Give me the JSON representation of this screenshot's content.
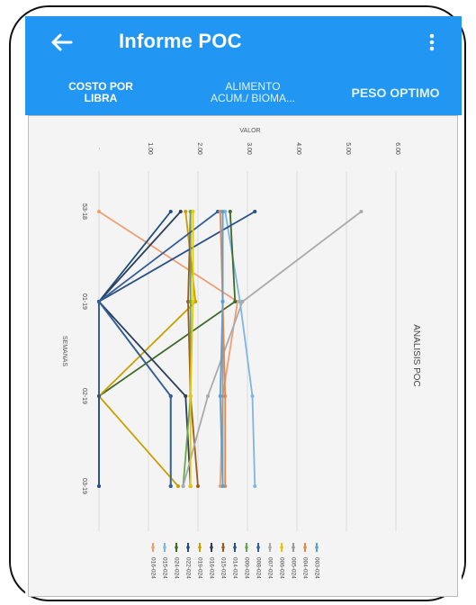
{
  "appbar": {
    "title": "Informe POC",
    "back_icon": "arrow-left-icon",
    "menu_icon": "more-vertical-icon"
  },
  "tabs": [
    {
      "label_line1": "COSTO POR",
      "label_line2": "LIBRA",
      "active": true
    },
    {
      "label_line1": "ALIMENTO",
      "label_line2": "ACUM./ BIOMA...",
      "active": false
    },
    {
      "label_line1": "PESO OPTIMO",
      "label_line2": "",
      "active": false
    }
  ],
  "colors": {
    "primary": "#2196F3",
    "on_primary": "#ffffff"
  },
  "chart_data": {
    "type": "line",
    "orientation": "rotated-90",
    "title": "ANALISIS POC",
    "ylabel": "VALOR",
    "xlabel": "SEMANAS",
    "ylim": [
      0,
      6
    ],
    "yticks": [
      ".",
      "1.00",
      "2.00",
      "3.00",
      "4.00",
      "5.00",
      "6.00"
    ],
    "categories": [
      "53-18",
      "01-19",
      "02-19",
      "03-19"
    ],
    "series": [
      {
        "name": "016-024",
        "color": "#f0a070",
        "values": [
          0,
          2.8,
          2.5,
          2.45
        ]
      },
      {
        "name": "015-024",
        "color": "#7fb6e0",
        "values": [
          2.55,
          2.85,
          3.1,
          3.15
        ]
      },
      {
        "name": "024-024",
        "color": "#3e6a2a",
        "values": [
          2.65,
          2.75,
          0,
          0
        ]
      },
      {
        "name": "022-024",
        "color": "#1f4f7a",
        "values": [
          1.45,
          0,
          1.45,
          1.45
        ]
      },
      {
        "name": "019-024",
        "color": "#c8a000",
        "values": [
          1.75,
          1.95,
          0,
          1.6
        ]
      },
      {
        "name": "016-024",
        "color": "#2c3e5a",
        "values": [
          1.65,
          0,
          1.75,
          1.85
        ]
      },
      {
        "name": "015-024",
        "color": "#a05a1a",
        "values": [
          1.85,
          1.8,
          1.85,
          2.0
        ]
      },
      {
        "name": "014-024",
        "color": "#2a4f8a",
        "values": [
          3.15,
          0,
          0,
          0
        ]
      },
      {
        "name": "009-024",
        "color": "#6aa84f",
        "values": [
          1.85,
          1.85,
          1.85,
          1.7
        ]
      },
      {
        "name": "008-024",
        "color": "#355f9a",
        "values": [
          2.4,
          0,
          1.45,
          1.45
        ]
      },
      {
        "name": "007-024",
        "color": "#aaaaaa",
        "values": [
          5.3,
          2.9,
          2.2,
          1.7
        ]
      },
      {
        "name": "006-024",
        "color": "#e8c800",
        "values": [
          1.9,
          1.9,
          1.85,
          1.85
        ]
      },
      {
        "name": "005-024",
        "color": "#9a9a9a",
        "values": [
          2.5,
          2.5,
          2.5,
          2.5
        ]
      },
      {
        "name": "004-024",
        "color": "#e08850",
        "values": [
          2.45,
          2.5,
          2.55,
          2.55
        ]
      },
      {
        "name": "003-024",
        "color": "#5aa0d0",
        "values": [
          2.5,
          2.5,
          2.45,
          2.5
        ]
      }
    ],
    "grid": true,
    "legend": "bottom"
  }
}
